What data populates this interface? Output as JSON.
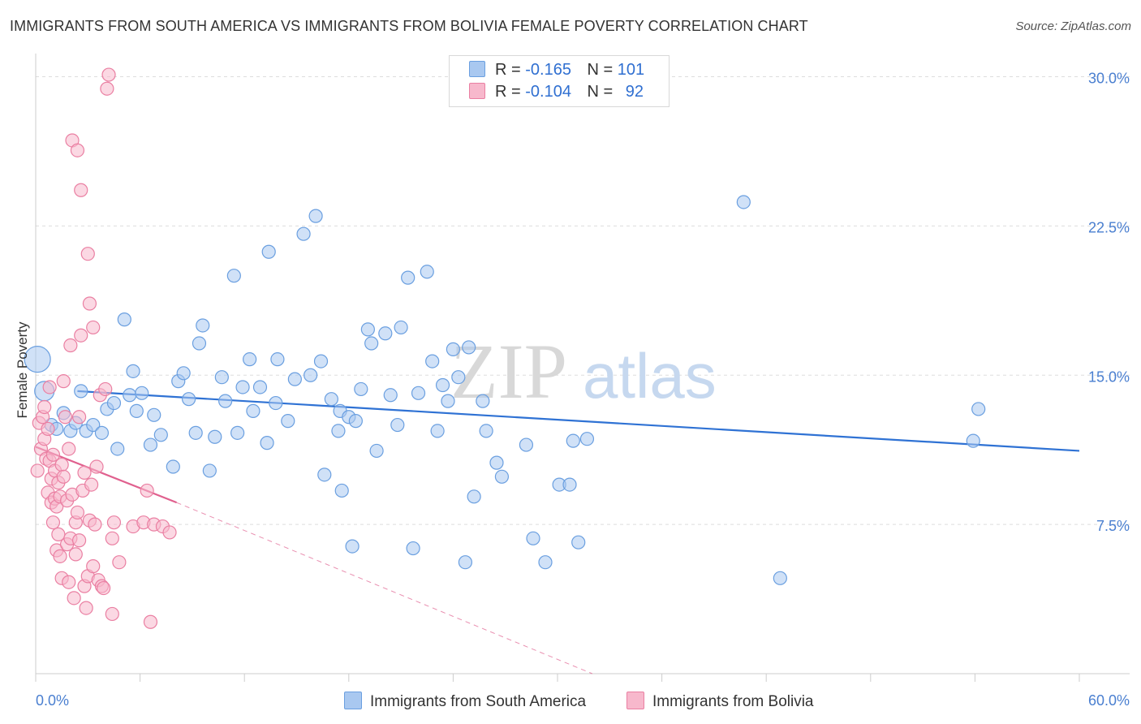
{
  "title": "IMMIGRANTS FROM SOUTH AMERICA VS IMMIGRANTS FROM BOLIVIA FEMALE POVERTY CORRELATION CHART",
  "source": "Source: ZipAtlas.com",
  "watermark": {
    "part1": "ZIP",
    "part2": "atlas"
  },
  "legend": {
    "r_label": "R =",
    "n_label": "N =",
    "rows": [
      {
        "r": "-0.165",
        "n": "101"
      },
      {
        "r": "-0.104",
        "n": "92"
      }
    ]
  },
  "bottom_legend": [
    "Immigrants from South America",
    "Immigrants from Bolivia"
  ],
  "colors": {
    "blue_fill": "#a9c8f0",
    "blue_stroke": "#6a9fe0",
    "blue_line": "#2f72d4",
    "pink_fill": "#f7b8cc",
    "pink_stroke": "#ea7fa2",
    "pink_line": "#e0608e",
    "tick_text": "#4a7fd0"
  },
  "chart_data": {
    "type": "scatter",
    "title": "IMMIGRANTS FROM SOUTH AMERICA VS IMMIGRANTS FROM BOLIVIA FEMALE POVERTY CORRELATION CHART",
    "xlabel": "",
    "ylabel": "Female Poverty",
    "xlim": [
      0,
      60
    ],
    "ylim": [
      0,
      31
    ],
    "x_tick_labels": [
      "0.0%",
      "60.0%"
    ],
    "y_ticks": [
      7.5,
      15.0,
      22.5,
      30.0
    ],
    "y_tick_labels": [
      "7.5%",
      "15.0%",
      "22.5%",
      "30.0%"
    ],
    "grid": true,
    "series": [
      {
        "name": "Immigrants from South America",
        "color": "blue",
        "trend": {
          "x": [
            2.4,
            60
          ],
          "y": [
            14.2,
            11.2
          ]
        },
        "points": [
          [
            0.1,
            15.8
          ],
          [
            0.5,
            14.2
          ],
          [
            0.9,
            12.5
          ],
          [
            1.2,
            12.3
          ],
          [
            1.6,
            13.1
          ],
          [
            2.0,
            12.2
          ],
          [
            2.3,
            12.6
          ],
          [
            2.6,
            14.2
          ],
          [
            2.9,
            12.2
          ],
          [
            3.3,
            12.5
          ],
          [
            3.8,
            12.1
          ],
          [
            4.1,
            13.3
          ],
          [
            4.5,
            13.6
          ],
          [
            4.7,
            11.3
          ],
          [
            5.1,
            17.8
          ],
          [
            5.4,
            14.0
          ],
          [
            5.6,
            15.2
          ],
          [
            5.8,
            13.2
          ],
          [
            6.1,
            14.1
          ],
          [
            6.6,
            11.5
          ],
          [
            6.8,
            13.0
          ],
          [
            7.2,
            12.0
          ],
          [
            7.9,
            10.4
          ],
          [
            8.2,
            14.7
          ],
          [
            8.5,
            15.1
          ],
          [
            8.8,
            13.8
          ],
          [
            9.2,
            12.1
          ],
          [
            9.4,
            16.6
          ],
          [
            9.6,
            17.5
          ],
          [
            10.0,
            10.2
          ],
          [
            10.3,
            11.9
          ],
          [
            10.7,
            14.9
          ],
          [
            10.9,
            13.7
          ],
          [
            11.4,
            20.0
          ],
          [
            11.6,
            12.1
          ],
          [
            11.9,
            14.4
          ],
          [
            12.3,
            15.8
          ],
          [
            12.5,
            13.2
          ],
          [
            12.9,
            14.4
          ],
          [
            13.3,
            11.6
          ],
          [
            13.4,
            21.2
          ],
          [
            13.8,
            13.6
          ],
          [
            13.9,
            15.8
          ],
          [
            14.5,
            12.7
          ],
          [
            14.9,
            14.8
          ],
          [
            15.4,
            22.1
          ],
          [
            15.8,
            15.0
          ],
          [
            16.1,
            23.0
          ],
          [
            16.4,
            15.7
          ],
          [
            16.6,
            10.0
          ],
          [
            17.0,
            13.8
          ],
          [
            17.4,
            12.2
          ],
          [
            17.5,
            13.2
          ],
          [
            17.6,
            9.2
          ],
          [
            18.0,
            12.9
          ],
          [
            18.2,
            6.4
          ],
          [
            18.4,
            12.7
          ],
          [
            18.7,
            14.3
          ],
          [
            19.1,
            17.3
          ],
          [
            19.3,
            16.6
          ],
          [
            19.6,
            11.2
          ],
          [
            20.1,
            17.1
          ],
          [
            20.4,
            14.0
          ],
          [
            20.8,
            12.5
          ],
          [
            21.0,
            17.4
          ],
          [
            21.4,
            19.9
          ],
          [
            21.7,
            6.3
          ],
          [
            22.0,
            14.1
          ],
          [
            22.5,
            20.2
          ],
          [
            22.8,
            15.7
          ],
          [
            23.1,
            12.2
          ],
          [
            23.4,
            14.5
          ],
          [
            23.7,
            13.7
          ],
          [
            24.0,
            16.3
          ],
          [
            24.3,
            14.9
          ],
          [
            24.7,
            5.6
          ],
          [
            24.9,
            16.4
          ],
          [
            25.2,
            8.9
          ],
          [
            25.7,
            13.7
          ],
          [
            25.9,
            12.2
          ],
          [
            26.5,
            10.6
          ],
          [
            26.8,
            9.9
          ],
          [
            28.2,
            11.5
          ],
          [
            28.6,
            6.8
          ],
          [
            29.3,
            5.6
          ],
          [
            30.1,
            9.5
          ],
          [
            30.7,
            9.5
          ],
          [
            30.9,
            11.7
          ],
          [
            31.2,
            6.6
          ],
          [
            31.7,
            11.8
          ],
          [
            40.7,
            23.7
          ],
          [
            42.8,
            4.8
          ],
          [
            53.9,
            11.7
          ],
          [
            54.2,
            13.3
          ]
        ]
      },
      {
        "name": "Immigrants from Bolivia",
        "color": "pink",
        "trend": {
          "x": [
            0,
            8.1
          ],
          "y": [
            11.4,
            8.6
          ]
        },
        "trend_dashed": {
          "x": [
            8.1,
            32
          ],
          "y": [
            8.6,
            0
          ]
        },
        "points": [
          [
            0.1,
            10.2
          ],
          [
            0.2,
            12.6
          ],
          [
            0.3,
            11.3
          ],
          [
            0.4,
            12.9
          ],
          [
            0.5,
            13.4
          ],
          [
            0.5,
            11.8
          ],
          [
            0.6,
            10.8
          ],
          [
            0.7,
            9.1
          ],
          [
            0.7,
            12.3
          ],
          [
            0.8,
            10.7
          ],
          [
            0.8,
            14.4
          ],
          [
            0.9,
            8.6
          ],
          [
            0.9,
            9.8
          ],
          [
            1.0,
            11.0
          ],
          [
            1.0,
            7.6
          ],
          [
            1.1,
            8.8
          ],
          [
            1.1,
            10.2
          ],
          [
            1.2,
            8.4
          ],
          [
            1.2,
            6.2
          ],
          [
            1.3,
            9.6
          ],
          [
            1.3,
            7.0
          ],
          [
            1.4,
            5.9
          ],
          [
            1.4,
            8.9
          ],
          [
            1.5,
            10.5
          ],
          [
            1.5,
            4.8
          ],
          [
            1.6,
            9.9
          ],
          [
            1.6,
            14.7
          ],
          [
            1.7,
            12.9
          ],
          [
            1.8,
            6.5
          ],
          [
            1.8,
            8.7
          ],
          [
            1.9,
            11.3
          ],
          [
            1.9,
            4.6
          ],
          [
            2.0,
            6.8
          ],
          [
            2.0,
            16.5
          ],
          [
            2.1,
            9.0
          ],
          [
            2.1,
            26.8
          ],
          [
            2.2,
            3.8
          ],
          [
            2.3,
            6.0
          ],
          [
            2.3,
            7.6
          ],
          [
            2.4,
            26.3
          ],
          [
            2.4,
            8.1
          ],
          [
            2.5,
            12.9
          ],
          [
            2.5,
            6.7
          ],
          [
            2.6,
            24.3
          ],
          [
            2.6,
            17.0
          ],
          [
            2.7,
            9.2
          ],
          [
            2.8,
            4.4
          ],
          [
            2.8,
            10.1
          ],
          [
            2.9,
            3.3
          ],
          [
            3.0,
            4.9
          ],
          [
            3.0,
            21.1
          ],
          [
            3.1,
            18.6
          ],
          [
            3.1,
            7.7
          ],
          [
            3.2,
            9.5
          ],
          [
            3.3,
            5.4
          ],
          [
            3.3,
            17.4
          ],
          [
            3.4,
            7.5
          ],
          [
            3.5,
            10.4
          ],
          [
            3.6,
            4.7
          ],
          [
            3.7,
            14.0
          ],
          [
            3.8,
            4.4
          ],
          [
            3.9,
            4.3
          ],
          [
            4.0,
            14.3
          ],
          [
            4.2,
            30.1
          ],
          [
            4.1,
            29.4
          ],
          [
            4.4,
            3.0
          ],
          [
            4.4,
            6.8
          ],
          [
            4.5,
            7.6
          ],
          [
            4.8,
            5.6
          ],
          [
            5.6,
            7.4
          ],
          [
            6.2,
            7.6
          ],
          [
            6.4,
            9.2
          ],
          [
            6.6,
            2.6
          ],
          [
            6.8,
            7.5
          ],
          [
            7.3,
            7.4
          ],
          [
            7.7,
            7.1
          ]
        ]
      }
    ]
  }
}
